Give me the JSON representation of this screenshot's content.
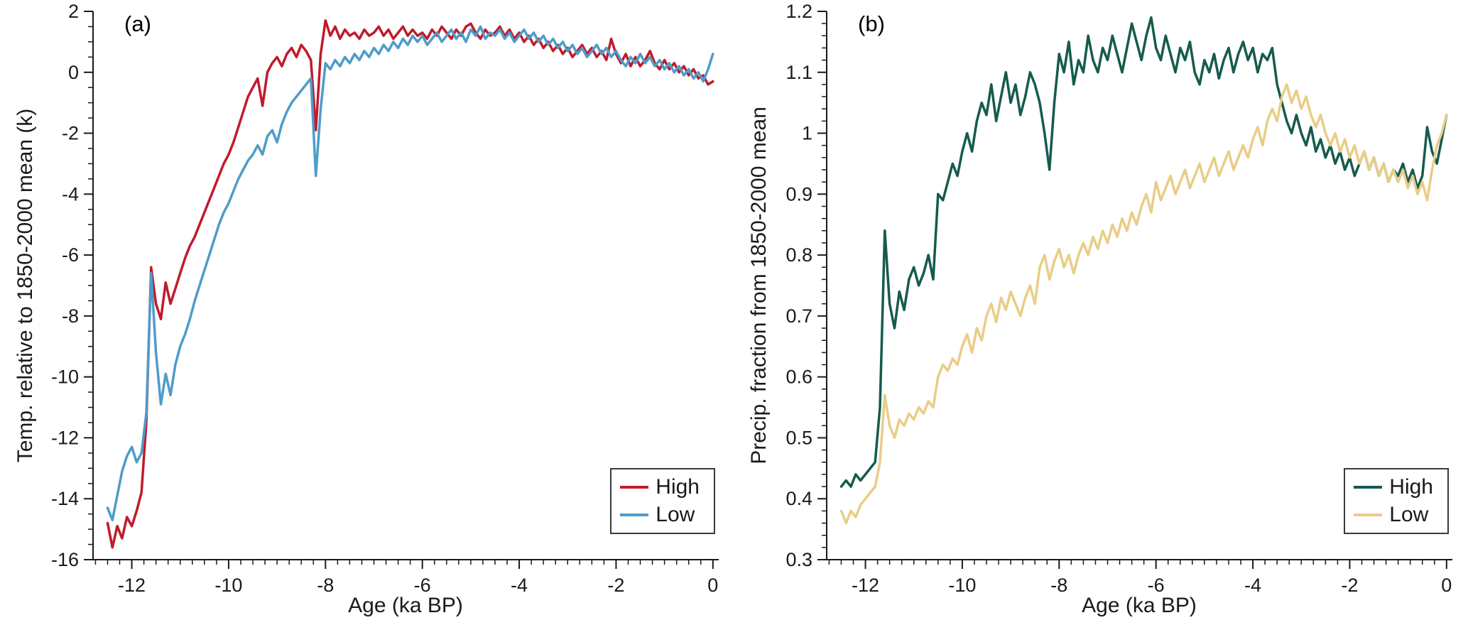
{
  "figure": {
    "background": "#ffffff",
    "axis_color": "#1a1a1a"
  },
  "chart_data": [
    {
      "type": "line",
      "annotation": "(a)",
      "xlabel": "Age (ka BP)",
      "ylabel": "Temp. relative to 1850-2000 mean (k)",
      "xlim": [
        -12.8,
        0.12
      ],
      "ylim": [
        -16,
        2
      ],
      "xticks": [
        -12,
        -10,
        -8,
        -6,
        -4,
        -2,
        0
      ],
      "yticks": [
        -16,
        -14,
        -12,
        -10,
        -8,
        -6,
        -4,
        -2,
        0,
        2
      ],
      "x_minor_step": 0.25,
      "y_minor_step": 0.5,
      "grid": false,
      "legend_position": "lower right",
      "x": [
        -12.5,
        -12.4,
        -12.3,
        -12.2,
        -12.1,
        -12.0,
        -11.9,
        -11.8,
        -11.7,
        -11.6,
        -11.5,
        -11.4,
        -11.3,
        -11.2,
        -11.1,
        -11.0,
        -10.9,
        -10.8,
        -10.7,
        -10.6,
        -10.5,
        -10.4,
        -10.3,
        -10.2,
        -10.1,
        -10.0,
        -9.9,
        -9.8,
        -9.7,
        -9.6,
        -9.5,
        -9.4,
        -9.3,
        -9.2,
        -9.1,
        -9.0,
        -8.9,
        -8.8,
        -8.7,
        -8.6,
        -8.5,
        -8.4,
        -8.3,
        -8.2,
        -8.1,
        -8.0,
        -7.9,
        -7.8,
        -7.7,
        -7.6,
        -7.5,
        -7.4,
        -7.3,
        -7.2,
        -7.1,
        -7.0,
        -6.9,
        -6.8,
        -6.7,
        -6.6,
        -6.5,
        -6.4,
        -6.3,
        -6.2,
        -6.1,
        -6.0,
        -5.9,
        -5.8,
        -5.7,
        -5.6,
        -5.5,
        -5.4,
        -5.3,
        -5.2,
        -5.1,
        -5.0,
        -4.9,
        -4.8,
        -4.7,
        -4.6,
        -4.5,
        -4.4,
        -4.3,
        -4.2,
        -4.1,
        -4.0,
        -3.9,
        -3.8,
        -3.7,
        -3.6,
        -3.5,
        -3.4,
        -3.3,
        -3.2,
        -3.1,
        -3.0,
        -2.9,
        -2.8,
        -2.7,
        -2.6,
        -2.5,
        -2.4,
        -2.3,
        -2.2,
        -2.1,
        -2.0,
        -1.9,
        -1.8,
        -1.7,
        -1.6,
        -1.5,
        -1.4,
        -1.3,
        -1.2,
        -1.1,
        -1.0,
        -0.9,
        -0.8,
        -0.7,
        -0.6,
        -0.5,
        -0.4,
        -0.3,
        -0.2,
        -0.1,
        0.0
      ],
      "series": [
        {
          "name": "High",
          "color": "#bf1b2c",
          "values": [
            -14.8,
            -15.6,
            -14.9,
            -15.3,
            -14.6,
            -14.9,
            -14.4,
            -13.8,
            -11.5,
            -6.4,
            -7.6,
            -8.1,
            -6.9,
            -7.6,
            -7.1,
            -6.6,
            -6.1,
            -5.7,
            -5.4,
            -5.0,
            -4.6,
            -4.2,
            -3.8,
            -3.4,
            -3.0,
            -2.7,
            -2.3,
            -1.8,
            -1.3,
            -0.8,
            -0.5,
            -0.2,
            -1.1,
            0.0,
            0.3,
            0.5,
            0.2,
            0.6,
            0.8,
            0.5,
            0.9,
            0.7,
            0.4,
            -1.9,
            0.6,
            1.7,
            1.2,
            1.5,
            1.1,
            1.4,
            1.2,
            1.3,
            1.1,
            1.4,
            1.2,
            1.3,
            1.5,
            1.2,
            1.4,
            1.1,
            1.3,
            1.5,
            1.2,
            1.4,
            1.2,
            1.3,
            1.1,
            1.4,
            1.2,
            1.5,
            1.3,
            1.1,
            1.4,
            1.2,
            1.5,
            1.6,
            1.3,
            1.1,
            1.4,
            1.2,
            1.3,
            1.5,
            1.2,
            1.4,
            1.1,
            1.3,
            1.0,
            1.2,
            0.9,
            1.1,
            0.8,
            1.0,
            0.7,
            0.9,
            0.6,
            0.8,
            0.5,
            0.7,
            0.9,
            0.6,
            0.8,
            0.5,
            0.7,
            0.4,
            1.1,
            0.6,
            0.3,
            0.6,
            0.2,
            0.5,
            0.2,
            0.4,
            0.7,
            0.3,
            0.1,
            0.4,
            0.1,
            0.3,
            0.0,
            0.2,
            -0.1,
            0.1,
            -0.2,
            -0.1,
            -0.4,
            -0.3
          ]
        },
        {
          "name": "Low",
          "color": "#4e9cc9",
          "values": [
            -14.3,
            -14.7,
            -13.9,
            -13.1,
            -12.6,
            -12.3,
            -12.8,
            -12.5,
            -11.2,
            -6.6,
            -9.2,
            -10.9,
            -9.9,
            -10.6,
            -9.6,
            -9.0,
            -8.6,
            -8.1,
            -7.5,
            -7.0,
            -6.5,
            -6.0,
            -5.5,
            -5.0,
            -4.6,
            -4.3,
            -3.9,
            -3.5,
            -3.2,
            -2.9,
            -2.7,
            -2.4,
            -2.7,
            -2.1,
            -1.9,
            -2.3,
            -1.7,
            -1.3,
            -1.0,
            -0.8,
            -0.6,
            -0.4,
            -0.2,
            -3.4,
            -1.2,
            0.3,
            0.1,
            0.4,
            0.2,
            0.5,
            0.3,
            0.6,
            0.4,
            0.7,
            0.5,
            0.8,
            0.6,
            0.9,
            0.7,
            1.0,
            0.8,
            1.1,
            0.9,
            1.2,
            1.0,
            1.2,
            0.9,
            1.1,
            1.3,
            1.0,
            1.2,
            1.4,
            1.1,
            1.3,
            1.0,
            1.4,
            1.2,
            1.5,
            1.1,
            1.3,
            1.2,
            1.4,
            1.1,
            1.3,
            1.0,
            1.2,
            1.4,
            1.1,
            1.3,
            1.0,
            1.2,
            0.9,
            1.1,
            0.8,
            1.0,
            0.7,
            0.9,
            0.6,
            0.8,
            0.5,
            0.7,
            0.9,
            0.6,
            0.8,
            0.5,
            0.7,
            0.4,
            0.2,
            0.5,
            0.3,
            0.6,
            0.3,
            0.5,
            0.2,
            0.4,
            0.1,
            0.3,
            0.0,
            0.2,
            -0.1,
            0.1,
            -0.2,
            0.0,
            -0.3,
            0.1,
            0.6
          ]
        }
      ]
    },
    {
      "type": "line",
      "annotation": "(b)",
      "xlabel": "Age (ka BP)",
      "ylabel": "Precip. fraction from 1850-2000 mean",
      "xlim": [
        -12.8,
        0.12
      ],
      "ylim": [
        0.3,
        1.2
      ],
      "xticks": [
        -12,
        -10,
        -8,
        -6,
        -4,
        -2,
        0
      ],
      "yticks": [
        0.3,
        0.4,
        0.5,
        0.6,
        0.7,
        0.8,
        0.9,
        1,
        1.1,
        1.2
      ],
      "x_minor_step": 0.25,
      "y_minor_step": 0.02,
      "grid": false,
      "legend_position": "lower right",
      "x": [
        -12.5,
        -12.4,
        -12.3,
        -12.2,
        -12.1,
        -12.0,
        -11.9,
        -11.8,
        -11.7,
        -11.6,
        -11.5,
        -11.4,
        -11.3,
        -11.2,
        -11.1,
        -11.0,
        -10.9,
        -10.8,
        -10.7,
        -10.6,
        -10.5,
        -10.4,
        -10.3,
        -10.2,
        -10.1,
        -10.0,
        -9.9,
        -9.8,
        -9.7,
        -9.6,
        -9.5,
        -9.4,
        -9.3,
        -9.2,
        -9.1,
        -9.0,
        -8.9,
        -8.8,
        -8.7,
        -8.6,
        -8.5,
        -8.4,
        -8.3,
        -8.2,
        -8.1,
        -8.0,
        -7.9,
        -7.8,
        -7.7,
        -7.6,
        -7.5,
        -7.4,
        -7.3,
        -7.2,
        -7.1,
        -7.0,
        -6.9,
        -6.8,
        -6.7,
        -6.6,
        -6.5,
        -6.4,
        -6.3,
        -6.2,
        -6.1,
        -6.0,
        -5.9,
        -5.8,
        -5.7,
        -5.6,
        -5.5,
        -5.4,
        -5.3,
        -5.2,
        -5.1,
        -5.0,
        -4.9,
        -4.8,
        -4.7,
        -4.6,
        -4.5,
        -4.4,
        -4.3,
        -4.2,
        -4.1,
        -4.0,
        -3.9,
        -3.8,
        -3.7,
        -3.6,
        -3.5,
        -3.4,
        -3.3,
        -3.2,
        -3.1,
        -3.0,
        -2.9,
        -2.8,
        -2.7,
        -2.6,
        -2.5,
        -2.4,
        -2.3,
        -2.2,
        -2.1,
        -2.0,
        -1.9,
        -1.8,
        -1.7,
        -1.6,
        -1.5,
        -1.4,
        -1.3,
        -1.2,
        -1.1,
        -1.0,
        -0.9,
        -0.8,
        -0.7,
        -0.6,
        -0.5,
        -0.4,
        -0.3,
        -0.2,
        -0.1,
        0.0
      ],
      "series": [
        {
          "name": "High",
          "color": "#155b4e",
          "values": [
            0.42,
            0.43,
            0.42,
            0.44,
            0.43,
            0.44,
            0.45,
            0.46,
            0.55,
            0.84,
            0.72,
            0.68,
            0.74,
            0.71,
            0.76,
            0.78,
            0.75,
            0.77,
            0.8,
            0.76,
            0.9,
            0.89,
            0.92,
            0.95,
            0.93,
            0.97,
            1.0,
            0.97,
            1.02,
            1.05,
            1.03,
            1.08,
            1.02,
            1.06,
            1.1,
            1.05,
            1.08,
            1.03,
            1.06,
            1.1,
            1.08,
            1.05,
            1.0,
            0.94,
            1.05,
            1.13,
            1.1,
            1.15,
            1.08,
            1.12,
            1.1,
            1.16,
            1.12,
            1.1,
            1.14,
            1.12,
            1.16,
            1.13,
            1.1,
            1.14,
            1.18,
            1.15,
            1.12,
            1.16,
            1.19,
            1.14,
            1.12,
            1.16,
            1.13,
            1.1,
            1.14,
            1.12,
            1.15,
            1.1,
            1.08,
            1.12,
            1.1,
            1.13,
            1.09,
            1.12,
            1.14,
            1.1,
            1.13,
            1.15,
            1.12,
            1.14,
            1.1,
            1.13,
            1.12,
            1.14,
            1.08,
            1.05,
            1.02,
            1.0,
            1.03,
            1.0,
            0.98,
            1.01,
            0.97,
            0.99,
            0.96,
            0.98,
            0.95,
            0.97,
            0.94,
            0.96,
            0.93,
            0.95,
            0.97,
            0.94,
            0.96,
            0.93,
            0.95,
            0.92,
            0.94,
            0.93,
            0.95,
            0.92,
            0.94,
            0.91,
            0.93,
            1.01,
            0.97,
            0.95,
            0.99,
            1.03
          ]
        },
        {
          "name": "Low",
          "color": "#e9cd87",
          "values": [
            0.38,
            0.36,
            0.38,
            0.37,
            0.39,
            0.4,
            0.41,
            0.42,
            0.46,
            0.57,
            0.52,
            0.5,
            0.53,
            0.52,
            0.54,
            0.53,
            0.55,
            0.54,
            0.56,
            0.55,
            0.6,
            0.62,
            0.61,
            0.63,
            0.62,
            0.65,
            0.67,
            0.64,
            0.68,
            0.66,
            0.7,
            0.72,
            0.69,
            0.73,
            0.71,
            0.74,
            0.72,
            0.7,
            0.73,
            0.75,
            0.72,
            0.78,
            0.8,
            0.76,
            0.79,
            0.81,
            0.78,
            0.8,
            0.77,
            0.8,
            0.82,
            0.8,
            0.83,
            0.81,
            0.84,
            0.82,
            0.85,
            0.83,
            0.86,
            0.84,
            0.87,
            0.85,
            0.88,
            0.9,
            0.87,
            0.92,
            0.89,
            0.91,
            0.93,
            0.9,
            0.92,
            0.94,
            0.91,
            0.93,
            0.95,
            0.92,
            0.94,
            0.96,
            0.93,
            0.95,
            0.97,
            0.94,
            0.96,
            0.98,
            0.96,
            0.99,
            1.01,
            0.98,
            1.02,
            1.04,
            1.02,
            1.06,
            1.08,
            1.05,
            1.07,
            1.04,
            1.06,
            1.03,
            1.01,
            1.03,
            1.0,
            0.98,
            1.0,
            0.97,
            0.99,
            0.96,
            0.98,
            0.95,
            0.97,
            0.94,
            0.96,
            0.93,
            0.95,
            0.92,
            0.94,
            0.92,
            0.94,
            0.91,
            0.93,
            0.9,
            0.92,
            0.89,
            0.94,
            0.98,
            1.0,
            1.03
          ]
        }
      ]
    }
  ]
}
